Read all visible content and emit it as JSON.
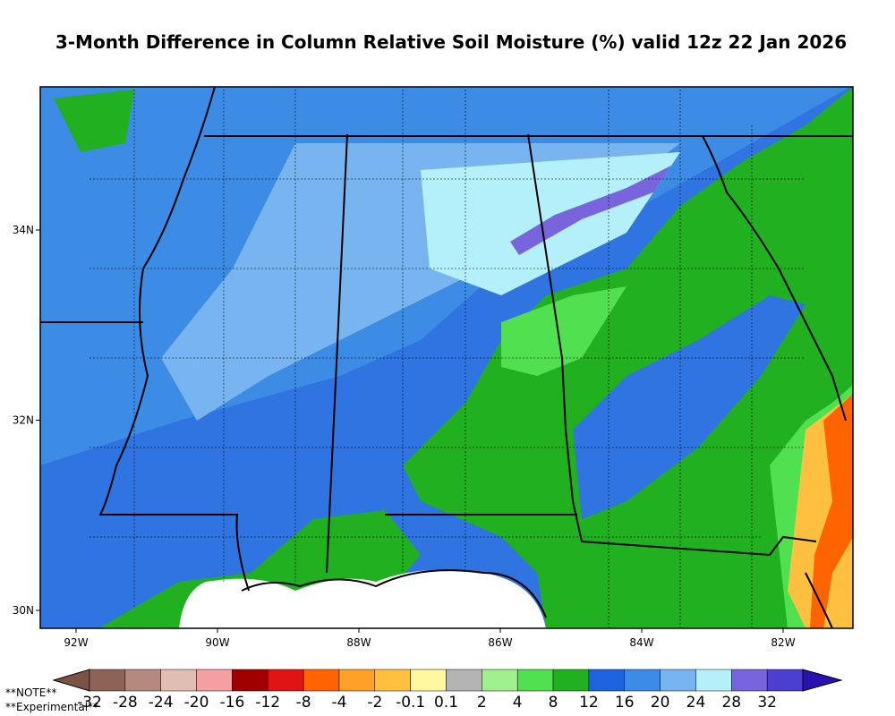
{
  "header": {
    "title": "3-Month Difference in Column Relative Soil Moisture (%) valid 12z 22 Jan 2026"
  },
  "map": {
    "lat_labels": [
      "34N",
      "32N",
      "30N"
    ],
    "lon_labels": [
      "92W",
      "90W",
      "88W",
      "86W",
      "84W",
      "82W"
    ]
  },
  "colorbar": {
    "labels": [
      -32,
      -28,
      -24,
      -20,
      -16,
      -12,
      -8,
      -4,
      -2,
      -0.1,
      0.1,
      2,
      4,
      8,
      12,
      16,
      20,
      24,
      28,
      32
    ],
    "colors": [
      "#7c5244",
      "#8c6355",
      "#b48a7e",
      "#e0beb3",
      "#f5a0a0",
      "#a00000",
      "#e01414",
      "#ff6400",
      "#ffa028",
      "#ffc040",
      "#fff8a0",
      "#b4b4b4",
      "#a0f090",
      "#50e050",
      "#20b020",
      "#1e64e0",
      "#3c8ce6",
      "#78b4f0",
      "#b4f0fa",
      "#7864dc",
      "#4a3fd0",
      "#2a10b0"
    ]
  },
  "notes": [
    "**NOTE**",
    "**Experimental**"
  ]
}
